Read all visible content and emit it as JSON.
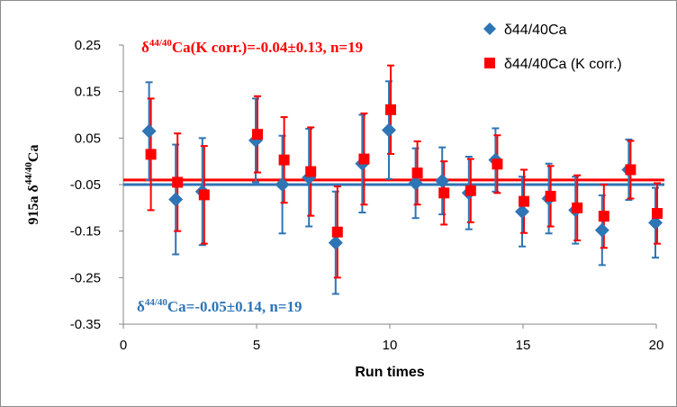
{
  "chart_data": {
    "type": "scatter",
    "xlabel": "Run times",
    "ylabel_prefix": "915a δ",
    "ylabel_sup": "44/40",
    "ylabel_suffix": "Ca",
    "xlim": [
      0,
      20
    ],
    "ylim": [
      -0.35,
      0.25
    ],
    "xticks": [
      "0",
      "5",
      "10",
      "15",
      "20"
    ],
    "yticks": [
      "0.25",
      "0.15",
      "0.05",
      "-0.05",
      "-0.15",
      "-0.25",
      "-0.35"
    ],
    "grid": false,
    "legend_position": "top-right",
    "series": [
      {
        "name": "δ44/40Ca",
        "color": "#2E75B6",
        "marker": "diamond",
        "x": [
          1,
          2,
          3,
          4,
          5,
          6,
          7,
          8,
          9,
          10,
          11,
          12,
          13,
          14,
          15,
          16,
          17,
          18,
          19,
          20
        ],
        "y": [
          0.065,
          -0.082,
          -0.065,
          null,
          0.045,
          -0.05,
          -0.035,
          -0.175,
          -0.005,
          0.067,
          -0.047,
          -0.042,
          -0.068,
          0.003,
          -0.108,
          -0.08,
          -0.105,
          -0.148,
          -0.018,
          -0.132
        ],
        "err": [
          0.105,
          0.118,
          0.115,
          null,
          0.09,
          0.105,
          0.105,
          0.11,
          0.105,
          0.105,
          0.075,
          0.072,
          0.078,
          0.068,
          0.075,
          0.075,
          0.072,
          0.075,
          0.065,
          0.075
        ]
      },
      {
        "name": "δ44/40Ca (K corr.)",
        "color": "#FF0000",
        "marker": "square",
        "x": [
          1,
          2,
          3,
          4,
          5,
          6,
          7,
          8,
          9,
          10,
          11,
          12,
          13,
          14,
          15,
          16,
          17,
          18,
          19,
          20
        ],
        "y": [
          0.015,
          -0.045,
          -0.072,
          null,
          0.058,
          0.003,
          -0.022,
          -0.152,
          0.005,
          0.111,
          -0.025,
          -0.068,
          -0.063,
          -0.006,
          -0.086,
          -0.075,
          -0.1,
          -0.118,
          -0.018,
          -0.112
        ],
        "err": [
          0.12,
          0.105,
          0.105,
          null,
          0.082,
          0.092,
          0.095,
          0.098,
          0.098,
          0.095,
          0.068,
          0.068,
          0.068,
          0.062,
          0.068,
          0.065,
          0.07,
          0.068,
          0.062,
          0.065
        ]
      }
    ],
    "mean_lines": [
      {
        "series": "δ44/40Ca (K corr.)",
        "y": -0.04,
        "color": "#FF0000"
      },
      {
        "series": "δ44/40Ca",
        "y": -0.05,
        "color": "#2E75B6"
      }
    ],
    "annotations": [
      {
        "series": "δ44/40Ca (K corr.)",
        "prefix": "δ",
        "sup": "44/40",
        "suffix": "Ca(K corr.)=-0.04±0.13, n=19",
        "color": "#FF0000"
      },
      {
        "series": "δ44/40Ca",
        "prefix": "δ",
        "sup": "44/40",
        "suffix": "Ca=-0.05±0.14, n=19",
        "color": "#2E75B6"
      }
    ]
  }
}
